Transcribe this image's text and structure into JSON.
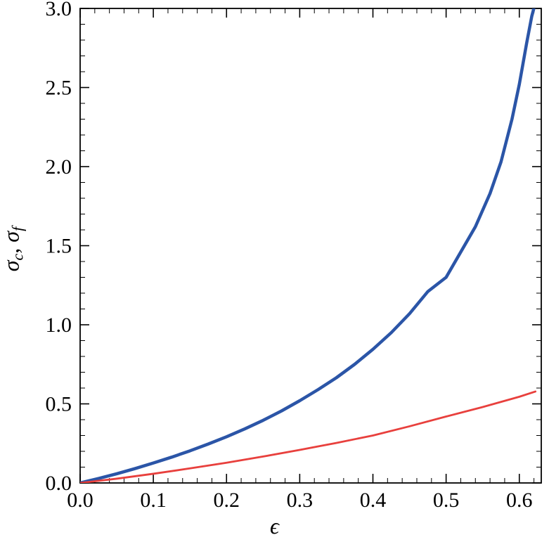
{
  "chart_data": {
    "type": "line",
    "title": "",
    "xlabel": "ϵ",
    "ylabel": "σ_c, σ_f",
    "ylabel_parts": {
      "sym1": "σ",
      "sub1": "c",
      "separator": ", ",
      "sym2": "σ",
      "sub2": "f"
    },
    "xlim": [
      0,
      0.63
    ],
    "ylim": [
      0,
      3.0
    ],
    "xticks": [
      0.0,
      0.1,
      0.2,
      0.3,
      0.4,
      0.5,
      0.6
    ],
    "xtick_labels": [
      "0.0",
      "0.1",
      "0.2",
      "0.3",
      "0.4",
      "0.5",
      "0.6"
    ],
    "yticks": [
      0.0,
      0.5,
      1.0,
      1.5,
      2.0,
      2.5,
      3.0
    ],
    "ytick_labels": [
      "0.0",
      "0.5",
      "1.0",
      "1.5",
      "2.0",
      "2.5",
      "3.0"
    ],
    "x_minor_step": 0.02,
    "y_minor_step": 0.1,
    "frame": true,
    "grid": false,
    "legend": "none",
    "background": "#ffffff",
    "frame_color": "#000000",
    "series": [
      {
        "name": "sigma_c",
        "color": "#2b55a7",
        "stroke_width": 4.5,
        "points": [
          [
            0.0,
            0.0
          ],
          [
            0.025,
            0.028
          ],
          [
            0.05,
            0.058
          ],
          [
            0.075,
            0.091
          ],
          [
            0.1,
            0.126
          ],
          [
            0.125,
            0.163
          ],
          [
            0.15,
            0.203
          ],
          [
            0.175,
            0.246
          ],
          [
            0.2,
            0.292
          ],
          [
            0.225,
            0.342
          ],
          [
            0.25,
            0.396
          ],
          [
            0.275,
            0.455
          ],
          [
            0.3,
            0.52
          ],
          [
            0.325,
            0.59
          ],
          [
            0.35,
            0.665
          ],
          [
            0.375,
            0.75
          ],
          [
            0.4,
            0.845
          ],
          [
            0.425,
            0.95
          ],
          [
            0.45,
            1.07
          ],
          [
            0.475,
            1.21
          ],
          [
            0.5,
            1.3
          ],
          [
            0.52,
            1.46
          ],
          [
            0.54,
            1.62
          ],
          [
            0.56,
            1.83
          ],
          [
            0.575,
            2.03
          ],
          [
            0.59,
            2.3
          ],
          [
            0.6,
            2.52
          ],
          [
            0.61,
            2.78
          ],
          [
            0.617,
            2.95
          ],
          [
            0.621,
            3.02
          ]
        ]
      },
      {
        "name": "sigma_f",
        "color": "#e8403d",
        "stroke_width": 2.8,
        "points": [
          [
            0.0,
            0.0
          ],
          [
            0.05,
            0.027
          ],
          [
            0.1,
            0.058
          ],
          [
            0.15,
            0.092
          ],
          [
            0.2,
            0.128
          ],
          [
            0.25,
            0.167
          ],
          [
            0.3,
            0.209
          ],
          [
            0.35,
            0.253
          ],
          [
            0.4,
            0.3
          ],
          [
            0.45,
            0.358
          ],
          [
            0.5,
            0.42
          ],
          [
            0.55,
            0.48
          ],
          [
            0.6,
            0.545
          ],
          [
            0.622,
            0.578
          ]
        ]
      }
    ]
  }
}
